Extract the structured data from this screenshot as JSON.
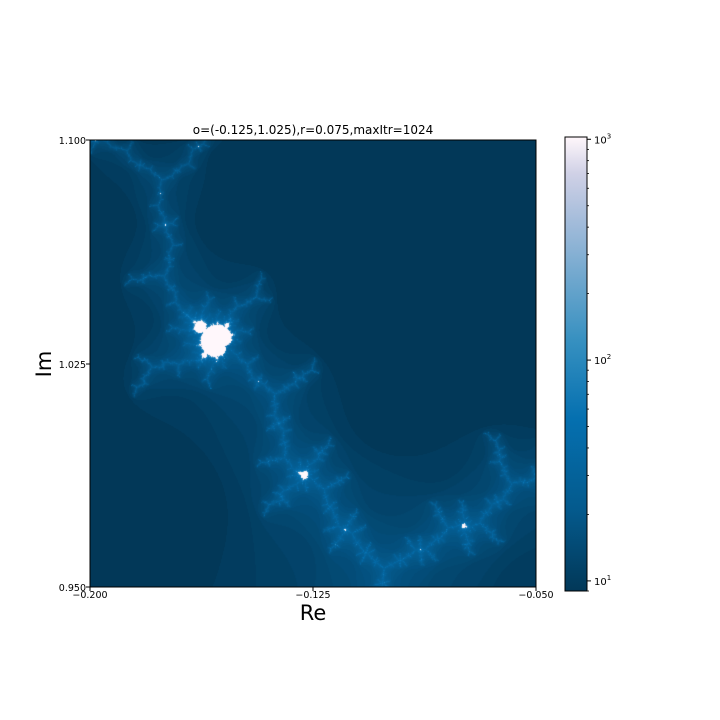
{
  "chart_data": {
    "type": "heatmap",
    "title": "o=(-0.125,1.025),r=0.075,maxItr=1024",
    "xlabel": "Re",
    "ylabel": "Im",
    "xlim": [
      -0.2,
      -0.05
    ],
    "ylim": [
      0.95,
      1.1
    ],
    "x_ticks": [
      {
        "value": -0.2,
        "label": "−0.200"
      },
      {
        "value": -0.125,
        "label": "−0.125"
      },
      {
        "value": -0.05,
        "label": "−0.050"
      }
    ],
    "y_ticks": [
      {
        "value": 0.95,
        "label": "0.950"
      },
      {
        "value": 1.025,
        "label": "1.025"
      },
      {
        "value": 1.1,
        "label": "1.100"
      }
    ],
    "center": {
      "re": -0.125,
      "im": 1.025
    },
    "radius": 0.075,
    "max_iterations": 1024,
    "colormap": "PuBu_r",
    "color_scale": "log",
    "colorbar": {
      "range": [
        9,
        1024
      ],
      "scale": "log",
      "ticks": [
        {
          "value": 10,
          "base": "10",
          "exp": "1"
        },
        {
          "value": 100,
          "base": "10",
          "exp": "2"
        },
        {
          "value": 1000,
          "base": "10",
          "exp": "3"
        }
      ]
    },
    "colors": {
      "low": "#023858",
      "mid": "#0570b0",
      "high": "#fff7fb"
    }
  }
}
